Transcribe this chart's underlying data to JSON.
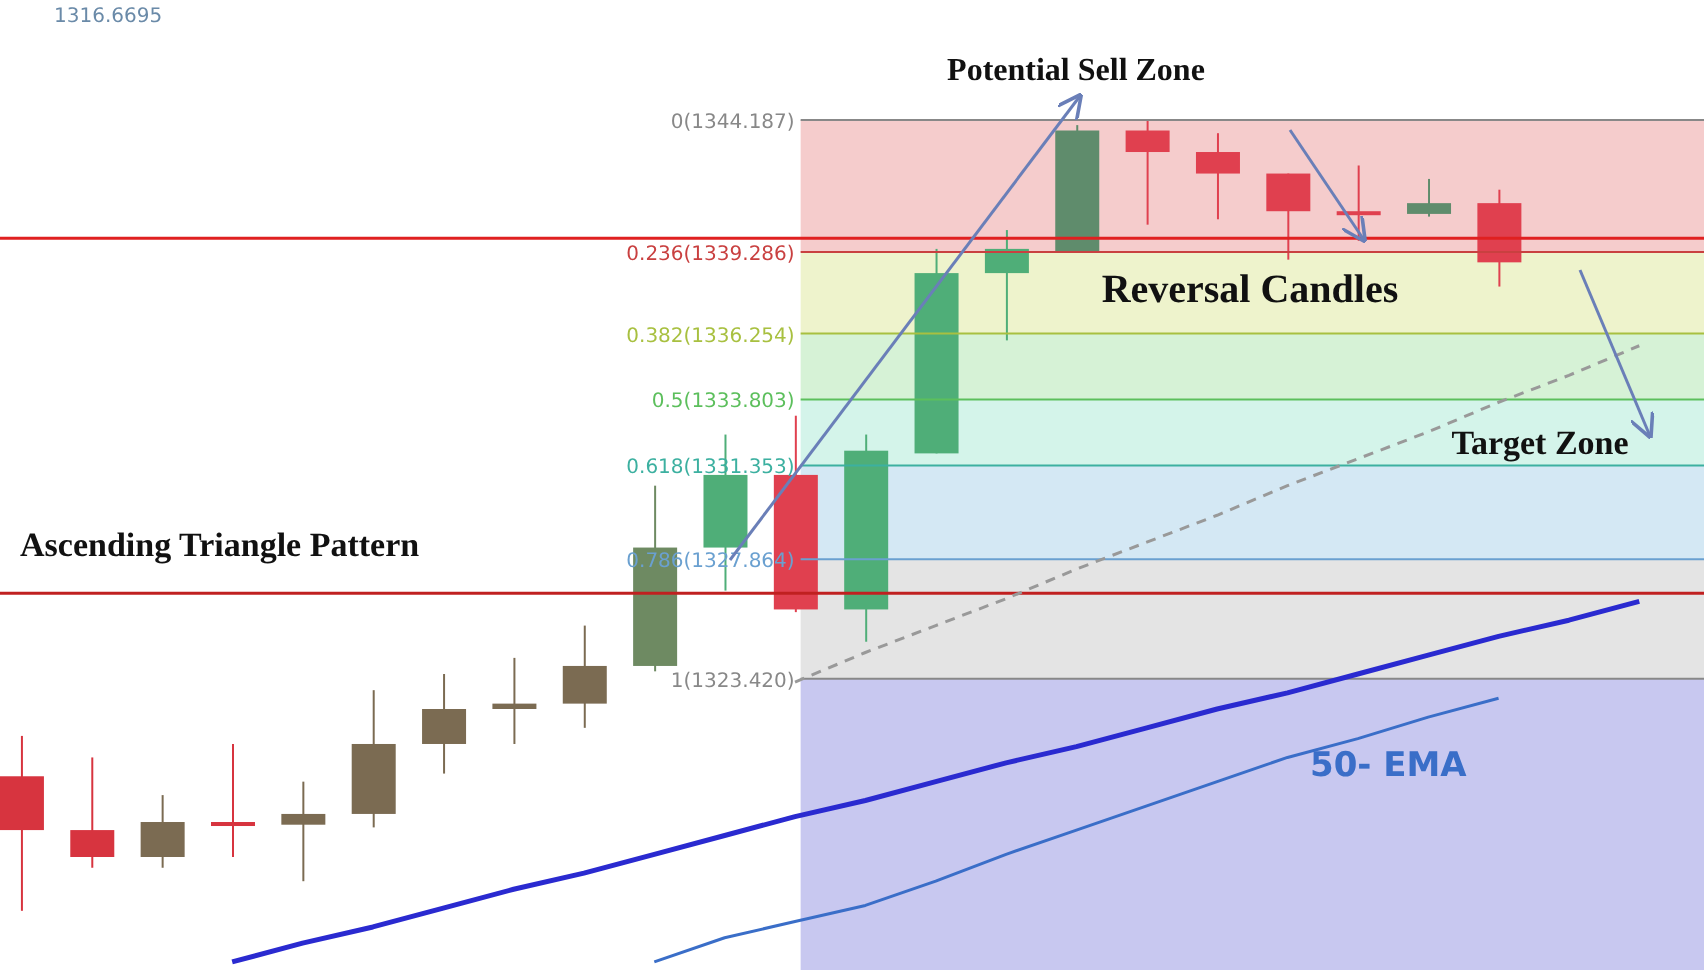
{
  "chart_data": {
    "type": "candlestick",
    "tick_labels": false,
    "categories": [
      null,
      null,
      null,
      null,
      null,
      null,
      null,
      null,
      null,
      null,
      null,
      null,
      null,
      null,
      null,
      null,
      null,
      null,
      null,
      null,
      null,
      null,
      null,
      null
    ],
    "ohlc": [
      [
        1319.8,
        1321.3,
        1314.8,
        1317.8
      ],
      [
        1317.8,
        1320.5,
        1316.4,
        1316.8
      ],
      [
        1316.8,
        1319.1,
        1316.4,
        1318.1
      ],
      [
        1318.1,
        1321.0,
        1316.8,
        1318.0
      ],
      [
        1318.0,
        1319.6,
        1315.9,
        1318.4
      ],
      [
        1318.4,
        1323.0,
        1317.9,
        1321.0
      ],
      [
        1321.0,
        1323.6,
        1319.9,
        1322.3
      ],
      [
        1322.3,
        1324.2,
        1321.0,
        1322.5
      ],
      [
        1322.5,
        1325.4,
        1321.6,
        1323.9
      ],
      [
        1323.9,
        1330.6,
        1323.7,
        1328.3
      ],
      [
        1328.3,
        1332.5,
        1326.7,
        1331.0
      ],
      [
        1331.0,
        1333.2,
        1325.9,
        1326.0
      ],
      [
        1326.0,
        1332.5,
        1324.8,
        1331.9
      ],
      [
        1331.8,
        1339.4,
        1331.8,
        1338.5
      ],
      [
        1338.5,
        1340.1,
        1336.0,
        1339.4
      ],
      [
        1339.3,
        1344.0,
        1339.3,
        1343.8
      ],
      [
        1343.8,
        1344.2,
        1340.3,
        1343.0
      ],
      [
        1343.0,
        1343.7,
        1340.5,
        1342.2
      ],
      [
        1342.2,
        1342.2,
        1339.0,
        1340.8
      ],
      [
        1340.8,
        1342.5,
        1339.7,
        1340.7
      ],
      [
        1340.7,
        1342.0,
        1340.6,
        1341.1
      ],
      [
        1341.1,
        1341.6,
        1338.0,
        1338.9
      ],
      null,
      null
    ],
    "colors": [
      "#d7343f",
      "#d7343f",
      "#7b6b52",
      "#d7343f",
      "#7b6b52",
      "#7b6b52",
      "#7b6b52",
      "#7b6b52",
      "#7b6b52",
      "#6e8a62",
      "#4fae78",
      "#e0404f",
      "#4fae78",
      "#4fae78",
      "#4fae78",
      "#5f8c6c",
      "#e0404f",
      "#e0404f",
      "#e0404f",
      "#e0404f",
      "#5f8c6c",
      "#e0404f",
      null,
      null
    ],
    "ylim": [
      1312.6,
      1348.65
    ],
    "series": [
      {
        "type": "line",
        "color": "#2a2ad0",
        "values": [
          null,
          null,
          null,
          1312.9,
          1313.6,
          1314.2,
          1314.9,
          1315.6,
          1316.2,
          1316.9,
          1317.6,
          1318.3,
          1318.9,
          1319.6,
          1320.3,
          1320.9,
          1321.6,
          1322.3,
          1322.9,
          1323.6,
          1324.3,
          1325.0,
          1325.6,
          1326.3
        ]
      },
      {
        "type": "line",
        "name": "50- EMA",
        "color": "#3a6ec8",
        "values": [
          null,
          null,
          null,
          null,
          null,
          null,
          null,
          null,
          null,
          1312.9,
          1313.8,
          1314.4,
          1315.0,
          1315.9,
          1316.9,
          1317.8,
          1318.7,
          1319.6,
          1320.5,
          1321.2,
          1322.0,
          1322.7,
          null,
          null
        ]
      },
      {
        "type": "line",
        "color": "#999999",
        "line_style": "dashed",
        "values": [
          null,
          null,
          null,
          null,
          null,
          null,
          null,
          null,
          null,
          null,
          null,
          1323.3,
          1324.4,
          1325.4,
          1326.4,
          1327.5,
          1328.5,
          1329.5,
          1330.6,
          1331.6,
          1332.6,
          1333.7,
          1334.7,
          1335.8
        ]
      }
    ],
    "ref_lines": [
      {
        "axis": "y",
        "value": 1344.187,
        "label": "0(1344.187)",
        "color": "#888888"
      },
      {
        "axis": "y",
        "value": 1339.286,
        "label": "0.236(1339.286)",
        "color": "#c94040"
      },
      {
        "axis": "y",
        "value": 1336.254,
        "label": "0.382(1336.254)",
        "color": "#a8c040"
      },
      {
        "axis": "y",
        "value": 1333.803,
        "label": "0.5(1333.803)",
        "color": "#5cbf5c"
      },
      {
        "axis": "y",
        "value": 1331.353,
        "label": "0.618(1331.353)",
        "color": "#3cb0a0"
      },
      {
        "axis": "y",
        "value": 1327.864,
        "label": "0.786(1327.864)",
        "color": "#6aa0d0"
      },
      {
        "axis": "y",
        "value": 1323.42,
        "label": "1(1323.420)",
        "color": "#888888"
      },
      {
        "axis": "y",
        "value": 1339.8,
        "color": "#e02020"
      },
      {
        "axis": "y",
        "value": 1326.6,
        "color": "#c02020"
      }
    ],
    "bands": [
      {
        "axis": "y",
        "from": 1339.286,
        "to": 1344.187,
        "color": "#f5cccc"
      },
      {
        "axis": "y",
        "from": 1336.254,
        "to": 1339.286,
        "color": "#eef3cc"
      },
      {
        "axis": "y",
        "from": 1333.803,
        "to": 1336.254,
        "color": "#d6f2d6"
      },
      {
        "axis": "y",
        "from": 1331.353,
        "to": 1333.803,
        "color": "#d4f4ea"
      },
      {
        "axis": "y",
        "from": 1327.864,
        "to": 1331.353,
        "color": "#d4e8f4"
      },
      {
        "axis": "y",
        "from": 1323.42,
        "to": 1327.864,
        "color": "#e4e4e4"
      },
      {
        "axis": "y",
        "from": 1312.6,
        "to": 1323.42,
        "color": "#c8c8f0"
      }
    ],
    "annotations": [
      "1316.6695",
      "Potential Sell Zone",
      "Reversal Candles",
      "Target Zone",
      "Ascending Triangle Pattern"
    ]
  }
}
